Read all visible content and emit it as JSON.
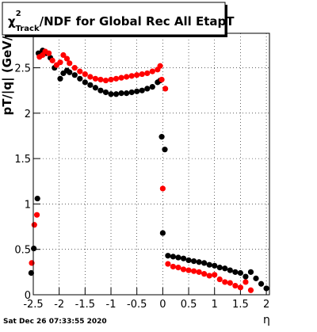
{
  "chart_data": {
    "type": "scatter",
    "title_symbol": "χ",
    "title_sup": "2",
    "title_sub": "Track",
    "title": "/NDF for Global Rec All EtapT",
    "x_label": "η",
    "y_label": "pT/|q| (GeV/c)",
    "timestamp": "Sat Dec 26 07:33:55 2020",
    "xlim": [
      -2.5,
      2.06
    ],
    "ylim": [
      0,
      2.88
    ],
    "xticks": [
      -2.5,
      -2,
      -1.5,
      -1,
      -0.5,
      0,
      0.5,
      1,
      1.5,
      2
    ],
    "yticks": [
      0,
      0.5,
      1,
      1.5,
      2,
      2.5
    ],
    "grid": true,
    "series": [
      {
        "color": "#000000",
        "x": [
          -2.54,
          -2.49,
          -2.42,
          -2.4,
          -2.32,
          -2.25,
          -2.17,
          -2.09,
          -1.98,
          -1.92,
          -1.85,
          -1.8,
          -1.7,
          -1.6,
          -1.5,
          -1.4,
          -1.3,
          -1.2,
          -1.1,
          -1.0,
          -0.9,
          -0.8,
          -0.7,
          -0.6,
          -0.5,
          -0.4,
          -0.3,
          -0.2,
          -0.1,
          -0.05,
          -0.02,
          0.0,
          0.04,
          0.1,
          0.2,
          0.3,
          0.4,
          0.5,
          0.6,
          0.7,
          0.8,
          0.9,
          1.0,
          1.1,
          1.2,
          1.3,
          1.4,
          1.5,
          1.6,
          1.7,
          1.8,
          1.9,
          2.0
        ],
        "y": [
          0.24,
          0.51,
          1.06,
          2.66,
          2.69,
          2.66,
          2.61,
          2.5,
          2.38,
          2.44,
          2.47,
          2.45,
          2.42,
          2.38,
          2.34,
          2.31,
          2.28,
          2.25,
          2.23,
          2.21,
          2.21,
          2.22,
          2.22,
          2.23,
          2.24,
          2.25,
          2.27,
          2.29,
          2.34,
          2.36,
          1.74,
          0.68,
          1.6,
          0.43,
          0.42,
          0.41,
          0.4,
          0.38,
          0.37,
          0.36,
          0.35,
          0.33,
          0.32,
          0.3,
          0.29,
          0.27,
          0.25,
          0.24,
          0.2,
          0.25,
          0.18,
          0.12,
          0.07
        ]
      },
      {
        "color": "#ff0000",
        "x": [
          -2.53,
          -2.48,
          -2.43,
          -2.38,
          -2.32,
          -2.27,
          -2.2,
          -2.13,
          -2.05,
          -1.98,
          -1.92,
          -1.85,
          -1.8,
          -1.7,
          -1.6,
          -1.5,
          -1.4,
          -1.3,
          -1.2,
          -1.1,
          -1.0,
          -0.9,
          -0.8,
          -0.7,
          -0.6,
          -0.5,
          -0.4,
          -0.3,
          -0.2,
          -0.1,
          -0.05,
          -0.02,
          0.0,
          0.05,
          0.1,
          0.2,
          0.3,
          0.4,
          0.5,
          0.6,
          0.7,
          0.8,
          0.9,
          1.0,
          1.1,
          1.2,
          1.3,
          1.4,
          1.5,
          1.6,
          1.7
        ],
        "y": [
          0.35,
          0.77,
          0.88,
          2.62,
          2.64,
          2.68,
          2.66,
          2.58,
          2.53,
          2.56,
          2.64,
          2.6,
          2.55,
          2.5,
          2.46,
          2.43,
          2.4,
          2.38,
          2.37,
          2.36,
          2.37,
          2.38,
          2.39,
          2.4,
          2.41,
          2.42,
          2.43,
          2.44,
          2.46,
          2.48,
          2.52,
          2.37,
          1.17,
          2.27,
          0.34,
          0.31,
          0.3,
          0.28,
          0.27,
          0.26,
          0.25,
          0.23,
          0.21,
          0.22,
          0.17,
          0.14,
          0.13,
          0.1,
          0.08,
          0.14,
          0.05
        ]
      }
    ]
  }
}
